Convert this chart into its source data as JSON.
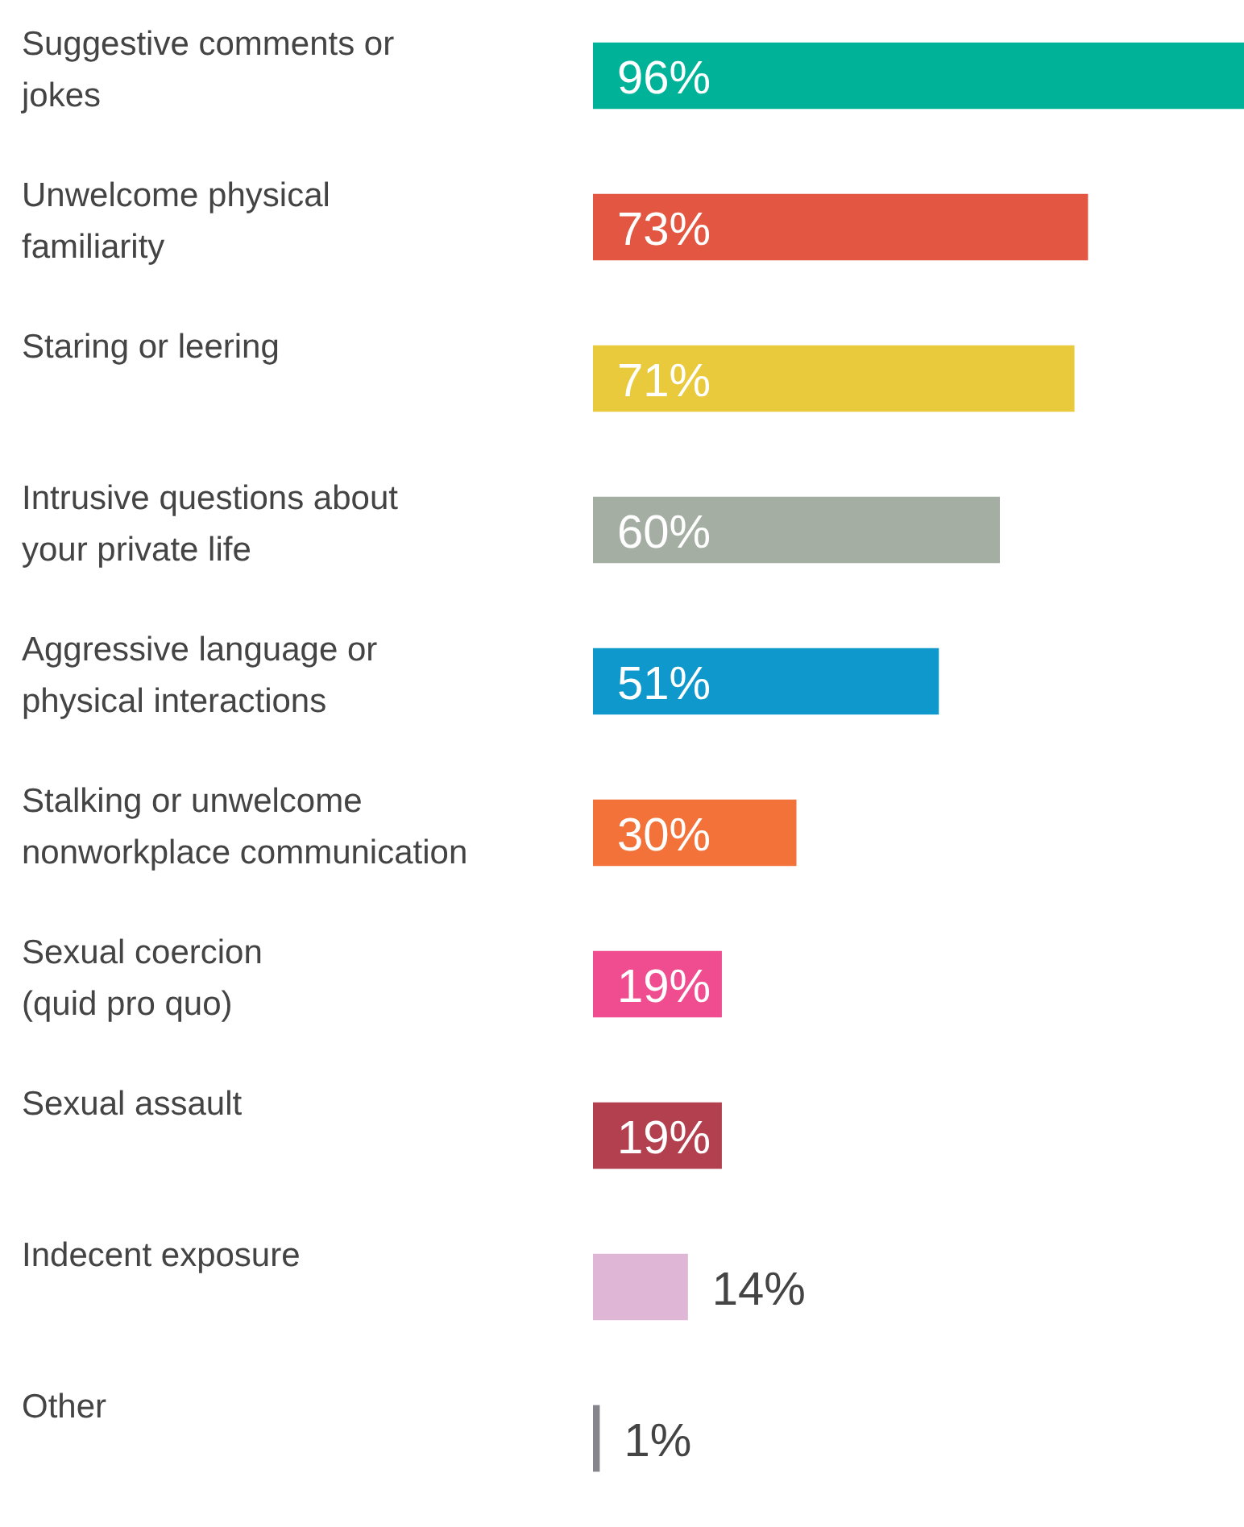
{
  "chart_data": {
    "type": "bar",
    "orientation": "horizontal",
    "categories": [
      "Suggestive comments or jokes",
      "Unwelcome physical familiarity",
      "Staring or leering",
      "Intrusive questions about your private life",
      "Aggressive language or physical interactions",
      "Stalking or unwelcome nonworkplace communication",
      "Sexual coercion (quid pro quo)",
      "Sexual assault",
      "Indecent exposure",
      "Other"
    ],
    "values": [
      96,
      73,
      71,
      60,
      51,
      30,
      19,
      19,
      14,
      1
    ],
    "value_labels": [
      "96%",
      "73%",
      "71%",
      "60%",
      "51%",
      "30%",
      "19%",
      "19%",
      "14%",
      "1%"
    ],
    "colors": [
      "#00b398",
      "#e35641",
      "#e8ca3c",
      "#a4aea2",
      "#0f98cc",
      "#f2723a",
      "#ef4d8f",
      "#b2404f",
      "#dfb6d6",
      "#86858d"
    ]
  }
}
